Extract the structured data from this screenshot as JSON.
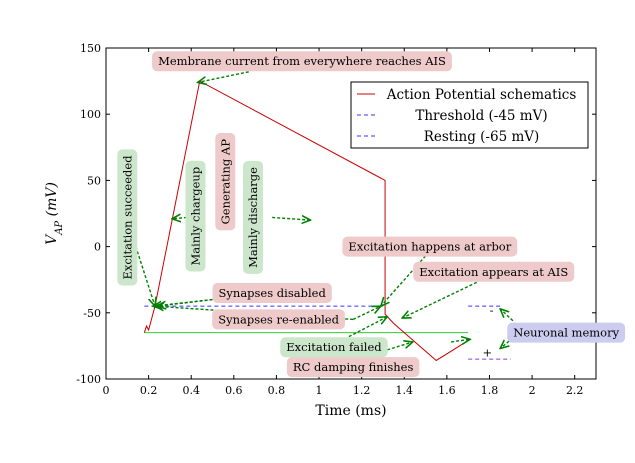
{
  "chart_data": {
    "type": "line",
    "xlabel": "Time (ms)",
    "ylabel": "V_{AP} (mV)",
    "xlim": [
      0,
      2.3
    ],
    "ylim": [
      -100,
      150
    ],
    "xticks": [
      0,
      0.2,
      0.4,
      0.6,
      0.8,
      1,
      1.2,
      1.4,
      1.6,
      1.8,
      2,
      2.2
    ],
    "xtick_labels": [
      "0",
      "0.2",
      "0.4",
      "0.6",
      "0.8",
      "1",
      "1.2",
      "1.4",
      "1.6",
      "1.8",
      "2",
      "2.2"
    ],
    "yticks": [
      -100,
      -50,
      0,
      50,
      100,
      150
    ],
    "ytick_labels": [
      "-100",
      "-50",
      "0",
      "50",
      "100",
      "150"
    ],
    "legend": {
      "placement": "top-right",
      "entries": [
        {
          "name": "Action Potential schematics",
          "color": "#cc0000",
          "dash": "solid"
        },
        {
          "name": "Threshold (-45 mV)",
          "color": "#3333ff",
          "dash": "dashed"
        },
        {
          "name": "Resting (-65 mV)",
          "color": "#3333ff",
          "dash": "dashed"
        }
      ]
    },
    "series": [
      {
        "name": "Action Potential schematics",
        "color": "#cc0000",
        "points": [
          [
            0.18,
            -65
          ],
          [
            0.19,
            -60
          ],
          [
            0.2,
            -63
          ],
          [
            0.23,
            -45
          ],
          [
            0.44,
            125
          ],
          [
            1.31,
            50.0
          ],
          [
            1.31,
            -51
          ],
          [
            1.35,
            -58
          ],
          [
            1.55,
            -86
          ],
          [
            1.7,
            -71
          ]
        ]
      }
    ],
    "reference_lines": [
      {
        "color": "#3333ff",
        "dash": "dashed",
        "points": [
          [
            0.18,
            -45
          ],
          [
            1.3,
            -45
          ]
        ]
      },
      {
        "color": "#3333ff",
        "dash": "dashed",
        "points": [
          [
            1.7,
            -45
          ],
          [
            1.85,
            -45
          ]
        ]
      },
      {
        "color": "#33cc33",
        "dash": "solid",
        "points": [
          [
            0.18,
            -65
          ],
          [
            1.7,
            -65
          ]
        ]
      },
      {
        "color": "#9933cc",
        "dash": "dashed",
        "points": [
          [
            1.7,
            -85
          ],
          [
            1.9,
            -85
          ]
        ]
      }
    ],
    "symbols": [
      {
        "text": "-",
        "x": 1.81,
        "y": -48
      },
      {
        "text": "+",
        "x": 1.79,
        "y": -80
      }
    ],
    "annotations": [
      {
        "text": "Membrane current from everywhere reaches AIS",
        "x": 0.92,
        "y": 140,
        "box": "#eecaca",
        "rotate": 0
      },
      {
        "text": "Excitation succeeded",
        "x": 0.1,
        "y": 22,
        "box": "#cce6cc",
        "rotate": -90
      },
      {
        "text": "Mainly chargeup",
        "x": 0.42,
        "y": 23,
        "box": "#cce6cc",
        "rotate": -90
      },
      {
        "text": "Generating AP",
        "x": 0.56,
        "y": 49,
        "box": "#eecaca",
        "rotate": -90
      },
      {
        "text": "Mainly discharge",
        "x": 0.69,
        "y": 22,
        "box": "#cce6cc",
        "rotate": -90
      },
      {
        "text": "Excitation happens at arbor",
        "x": 1.52,
        "y": 0,
        "box": "#eecaca",
        "rotate": 0
      },
      {
        "text": "Excitation appears at AIS",
        "x": 1.82,
        "y": -19,
        "box": "#eecaca",
        "rotate": 0
      },
      {
        "text": "Synapses disabled",
        "x": 0.78,
        "y": -35,
        "box": "#eecaca",
        "rotate": 0
      },
      {
        "text": "Synapses re-enabled",
        "x": 0.81,
        "y": -55,
        "box": "#eecaca",
        "rotate": 0
      },
      {
        "text": "Neuronal memory",
        "x": 2.16,
        "y": -65,
        "box": "#ccccf0",
        "rotate": 0
      },
      {
        "text": "Excitation failed",
        "x": 1.07,
        "y": -76,
        "box": "#cce6cc",
        "rotate": 0
      },
      {
        "text": "RC damping finishes",
        "x": 1.16,
        "y": -91,
        "box": "#eecaca",
        "rotate": 0
      }
    ],
    "arrows": [
      {
        "from": [
          0.67,
          132
        ],
        "to": [
          0.43,
          124
        ]
      },
      {
        "from": [
          0.14,
          0
        ],
        "to": [
          0.23,
          -45
        ]
      },
      {
        "from": [
          0.38,
          22
        ],
        "to": [
          0.31,
          21
        ]
      },
      {
        "from": [
          0.78,
          22
        ],
        "to": [
          0.96,
          20
        ]
      },
      {
        "from": [
          0.5,
          -40
        ],
        "to": [
          0.24,
          -45
        ]
      },
      {
        "from": [
          0.5,
          -40
        ],
        "to": [
          0.22,
          -45
        ]
      },
      {
        "from": [
          1.16,
          -55
        ],
        "to": [
          0.23,
          -45
        ]
      },
      {
        "from": [
          1.16,
          -55
        ],
        "to": [
          1.29,
          -45
        ]
      },
      {
        "from": [
          1.5,
          -7
        ],
        "to": [
          1.29,
          -45
        ]
      },
      {
        "from": [
          1.74,
          -27
        ],
        "to": [
          1.39,
          -54
        ]
      },
      {
        "from": [
          1.14,
          -68
        ],
        "to": [
          1.32,
          -53
        ]
      },
      {
        "from": [
          1.32,
          -78
        ],
        "to": [
          1.44,
          -72
        ]
      },
      {
        "from": [
          1.62,
          -72
        ],
        "to": [
          1.71,
          -70
        ]
      },
      {
        "from": [
          1.91,
          -56
        ],
        "to": [
          1.85,
          -47
        ]
      },
      {
        "from": [
          1.91,
          -69
        ],
        "to": [
          1.85,
          -77
        ]
      }
    ]
  }
}
